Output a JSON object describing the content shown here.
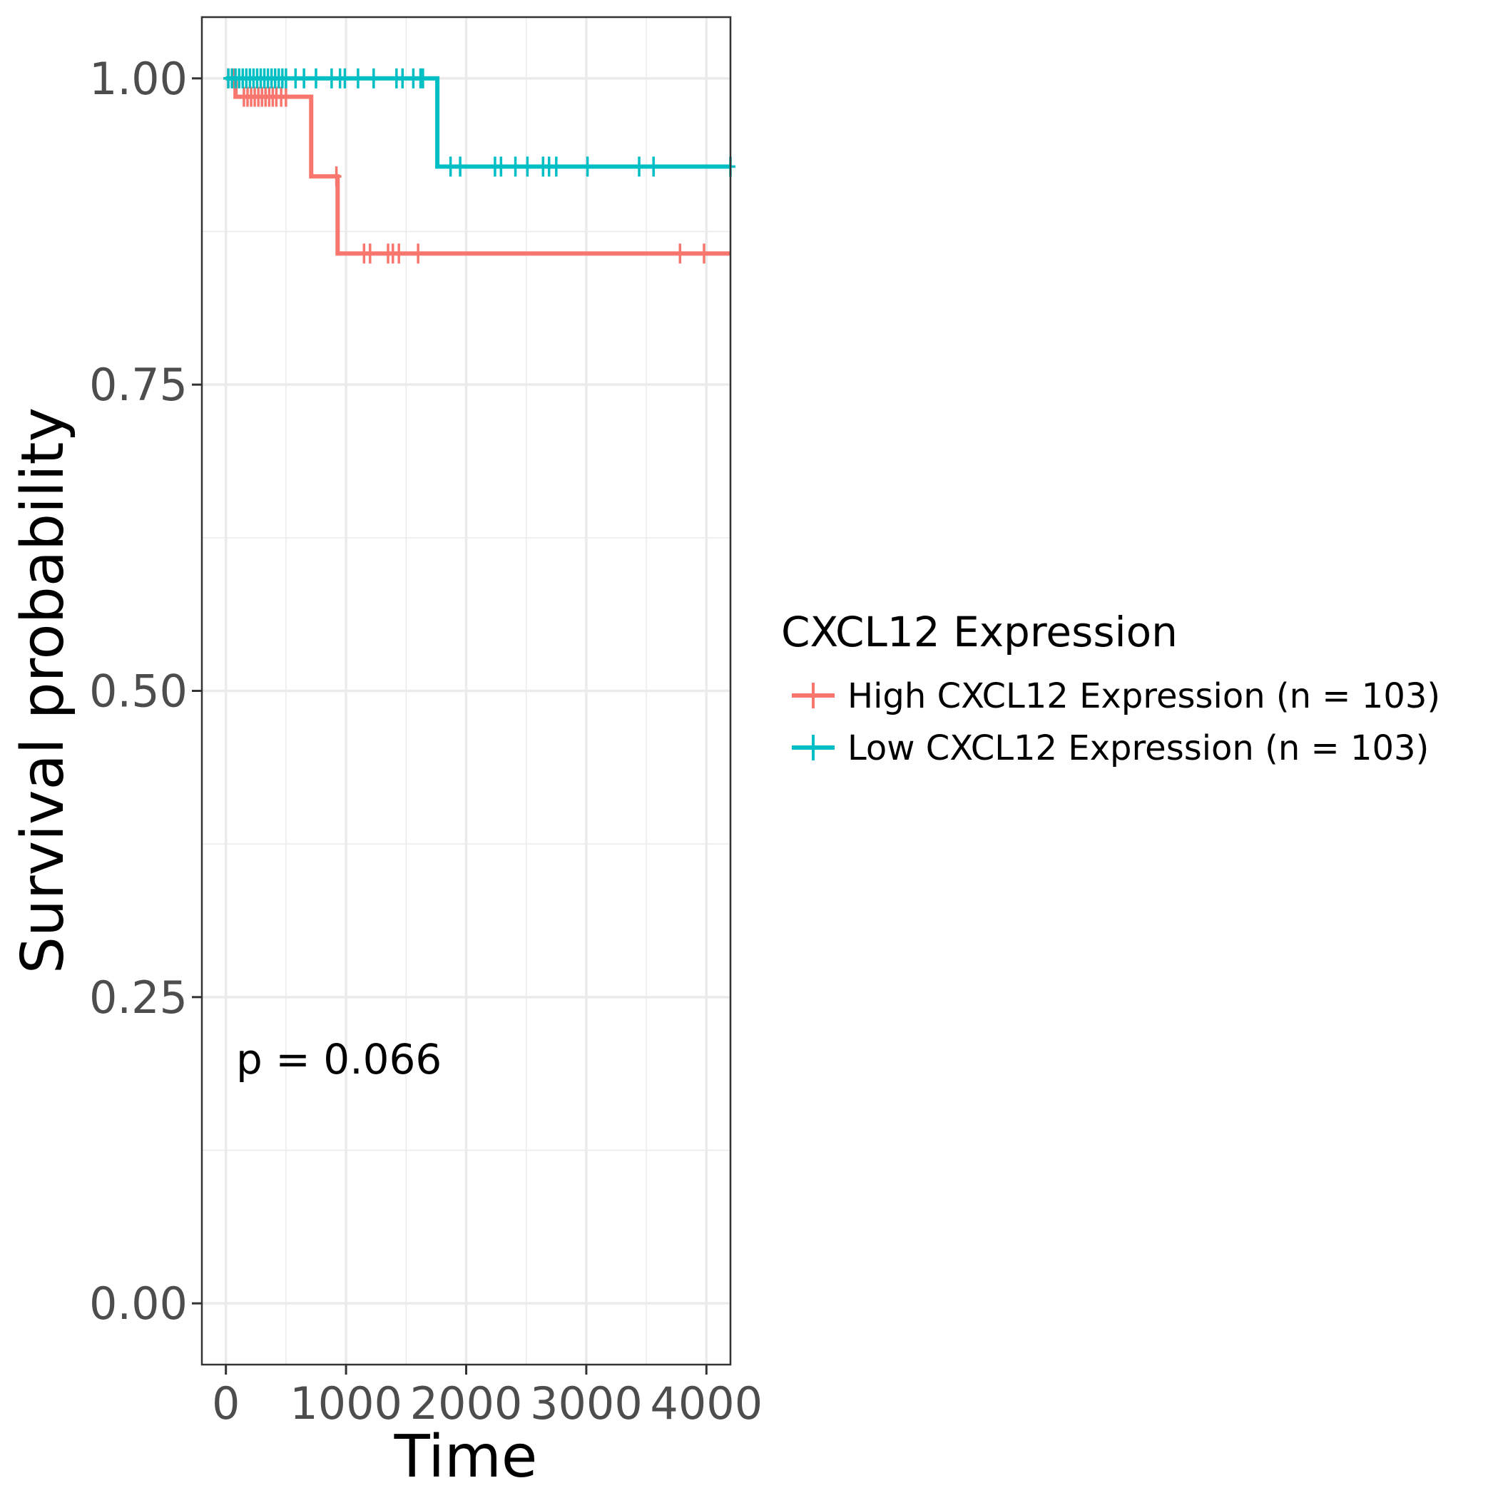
{
  "chart_data": {
    "type": "line",
    "subtype": "kaplan-meier step",
    "title": "",
    "xlabel": "Time",
    "ylabel": "Survival probability",
    "xlim": [
      -200,
      4200
    ],
    "ylim": [
      -0.05,
      1.05
    ],
    "xticks": [
      0,
      1000,
      2000,
      3000,
      4000
    ],
    "xtick_labels": [
      "0",
      "1000",
      "2000",
      "3000",
      "4000"
    ],
    "yticks": [
      0,
      0.25,
      0.5,
      0.75,
      1.0
    ],
    "ytick_labels": [
      "0.00",
      "0.25",
      "0.50",
      "0.75",
      "1.00"
    ],
    "grid": true,
    "legend_position": "right",
    "legend_title": "CXCL12 Expression",
    "annotation": "p = 0.066",
    "series": [
      {
        "name": "High CXCL12 Expression (n = 103)",
        "color": "#F8766D",
        "steps": [
          {
            "x": 0,
            "y": 1.0
          },
          {
            "x": 80,
            "y": 0.985
          },
          {
            "x": 710,
            "y": 0.92
          },
          {
            "x": 930,
            "y": 0.857
          },
          {
            "x": 4200,
            "y": 0.857
          }
        ],
        "censors": [
          {
            "x": 20,
            "y": 1.0
          },
          {
            "x": 60,
            "y": 1.0
          },
          {
            "x": 150,
            "y": 0.985
          },
          {
            "x": 180,
            "y": 0.985
          },
          {
            "x": 210,
            "y": 0.985
          },
          {
            "x": 240,
            "y": 0.985
          },
          {
            "x": 270,
            "y": 0.985
          },
          {
            "x": 300,
            "y": 0.985
          },
          {
            "x": 330,
            "y": 0.985
          },
          {
            "x": 360,
            "y": 0.985
          },
          {
            "x": 390,
            "y": 0.985
          },
          {
            "x": 420,
            "y": 0.985
          },
          {
            "x": 460,
            "y": 0.985
          },
          {
            "x": 500,
            "y": 0.985
          },
          {
            "x": 920,
            "y": 0.92
          },
          {
            "x": 1150,
            "y": 0.857
          },
          {
            "x": 1200,
            "y": 0.857
          },
          {
            "x": 1350,
            "y": 0.857
          },
          {
            "x": 1390,
            "y": 0.857
          },
          {
            "x": 1440,
            "y": 0.857
          },
          {
            "x": 1600,
            "y": 0.857
          },
          {
            "x": 3780,
            "y": 0.857
          },
          {
            "x": 3980,
            "y": 0.857
          }
        ]
      },
      {
        "name": "Low CXCL12 Expression (n = 103)",
        "color": "#00BFC4",
        "steps": [
          {
            "x": 0,
            "y": 1.0
          },
          {
            "x": 1760,
            "y": 0.928
          },
          {
            "x": 4200,
            "y": 0.928
          }
        ],
        "censors": [
          {
            "x": 20,
            "y": 1.0
          },
          {
            "x": 50,
            "y": 1.0
          },
          {
            "x": 80,
            "y": 1.0
          },
          {
            "x": 110,
            "y": 1.0
          },
          {
            "x": 140,
            "y": 1.0
          },
          {
            "x": 170,
            "y": 1.0
          },
          {
            "x": 200,
            "y": 1.0
          },
          {
            "x": 230,
            "y": 1.0
          },
          {
            "x": 260,
            "y": 1.0
          },
          {
            "x": 290,
            "y": 1.0
          },
          {
            "x": 320,
            "y": 1.0
          },
          {
            "x": 350,
            "y": 1.0
          },
          {
            "x": 380,
            "y": 1.0
          },
          {
            "x": 410,
            "y": 1.0
          },
          {
            "x": 440,
            "y": 1.0
          },
          {
            "x": 470,
            "y": 1.0
          },
          {
            "x": 500,
            "y": 1.0
          },
          {
            "x": 580,
            "y": 1.0
          },
          {
            "x": 650,
            "y": 1.0
          },
          {
            "x": 750,
            "y": 1.0
          },
          {
            "x": 880,
            "y": 1.0
          },
          {
            "x": 950,
            "y": 1.0
          },
          {
            "x": 990,
            "y": 1.0
          },
          {
            "x": 1100,
            "y": 1.0
          },
          {
            "x": 1230,
            "y": 1.0
          },
          {
            "x": 1420,
            "y": 1.0
          },
          {
            "x": 1470,
            "y": 1.0
          },
          {
            "x": 1560,
            "y": 1.0
          },
          {
            "x": 1620,
            "y": 1.0
          },
          {
            "x": 1640,
            "y": 1.0
          },
          {
            "x": 1870,
            "y": 0.928
          },
          {
            "x": 1950,
            "y": 0.928
          },
          {
            "x": 2240,
            "y": 0.928
          },
          {
            "x": 2290,
            "y": 0.928
          },
          {
            "x": 2410,
            "y": 0.928
          },
          {
            "x": 2510,
            "y": 0.928
          },
          {
            "x": 2640,
            "y": 0.928
          },
          {
            "x": 2690,
            "y": 0.928
          },
          {
            "x": 2750,
            "y": 0.928
          },
          {
            "x": 3010,
            "y": 0.928
          },
          {
            "x": 3440,
            "y": 0.928
          },
          {
            "x": 3560,
            "y": 0.928
          },
          {
            "x": 4200,
            "y": 0.928
          }
        ]
      }
    ]
  }
}
